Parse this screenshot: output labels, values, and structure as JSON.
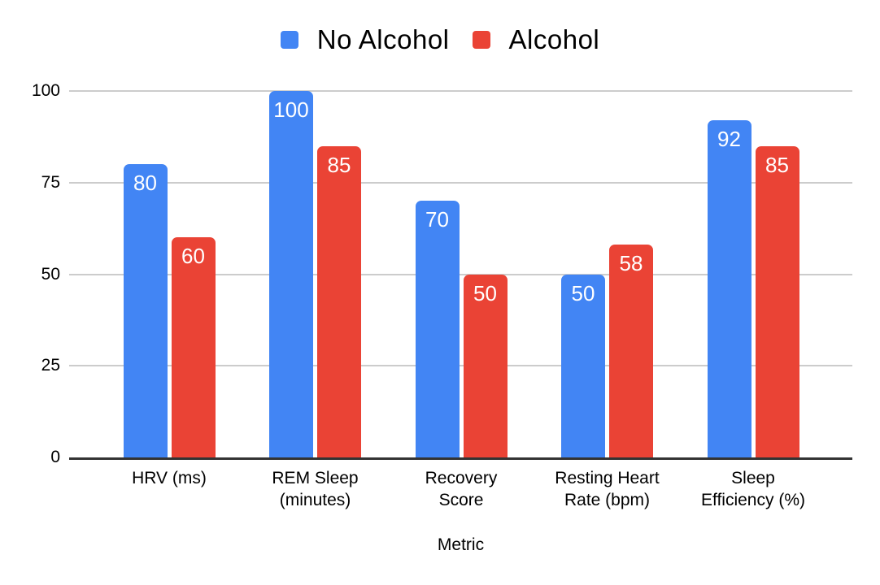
{
  "chart_data": {
    "type": "bar",
    "title": "",
    "xlabel": "Metric",
    "ylabel": "",
    "ylim": [
      0,
      100
    ],
    "yticks": [
      0,
      25,
      50,
      75,
      100
    ],
    "grid": true,
    "legend_position": "top-center",
    "categories": [
      "HRV (ms)",
      "REM Sleep (minutes)",
      "Recovery Score",
      "Resting Heart Rate (bpm)",
      "Sleep Efficiency (%)"
    ],
    "category_lines": [
      [
        "HRV (ms)"
      ],
      [
        "REM Sleep",
        "(minutes)"
      ],
      [
        "Recovery",
        "Score"
      ],
      [
        "Resting Heart",
        "Rate (bpm)"
      ],
      [
        "Sleep",
        "Efficiency (%)"
      ]
    ],
    "series": [
      {
        "name": "No Alcohol",
        "color": "#4285F4",
        "values": [
          80,
          100,
          70,
          50,
          92
        ]
      },
      {
        "name": "Alcohol",
        "color": "#EA4335",
        "values": [
          60,
          85,
          50,
          58,
          85
        ]
      }
    ],
    "data_labels_shown": true
  },
  "colors": {
    "background": "#FFFFFF",
    "gridline": "#CCCCCC",
    "axis_line": "#333333",
    "text": "#000000",
    "data_label": "#FFFFFF"
  }
}
